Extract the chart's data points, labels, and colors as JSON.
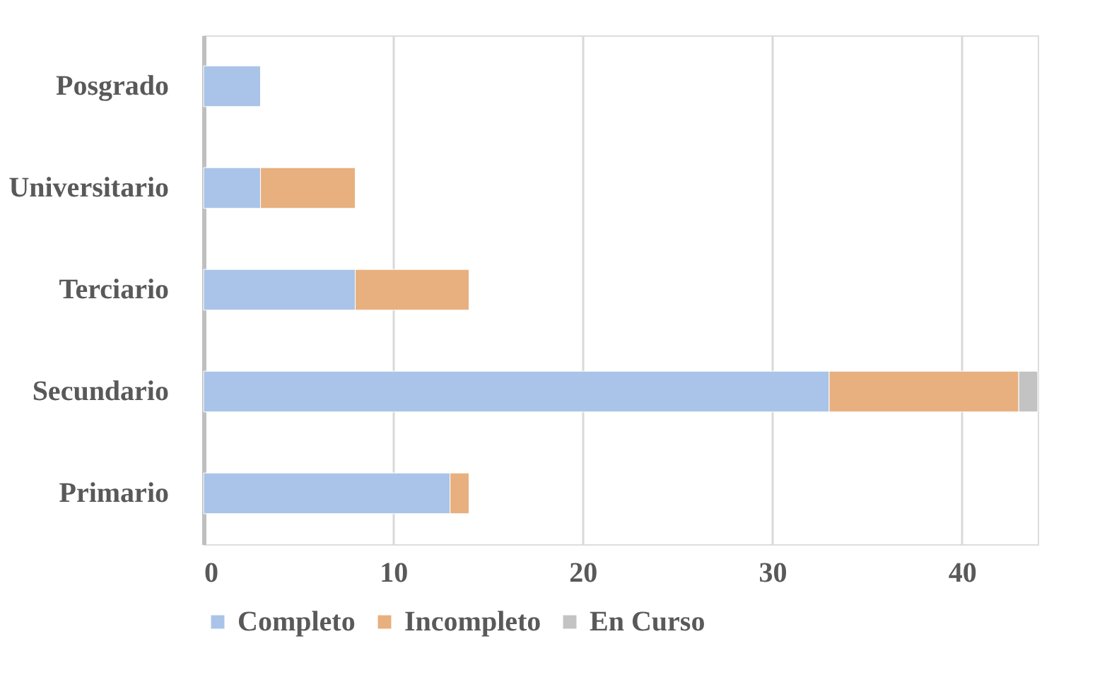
{
  "chart_data": {
    "type": "bar",
    "orientation": "horizontal",
    "stacked": true,
    "categories": [
      "Posgrado",
      "Universitario",
      "Terciario",
      "Secundario",
      "Primario"
    ],
    "series": [
      {
        "name": "Completo",
        "color": "#a9c4e8",
        "values": [
          3,
          3,
          8,
          33,
          13
        ]
      },
      {
        "name": "Incompleto",
        "color": "#e8b07f",
        "values": [
          null,
          5,
          6,
          10,
          1
        ]
      },
      {
        "name": "En Curso",
        "color": "#c3c3c3",
        "values": [
          null,
          null,
          null,
          1,
          null
        ]
      }
    ],
    "xlim": [
      0,
      44
    ],
    "xticks": [
      0,
      10,
      20,
      30,
      40
    ],
    "grid": "x",
    "legend": "bottom"
  }
}
